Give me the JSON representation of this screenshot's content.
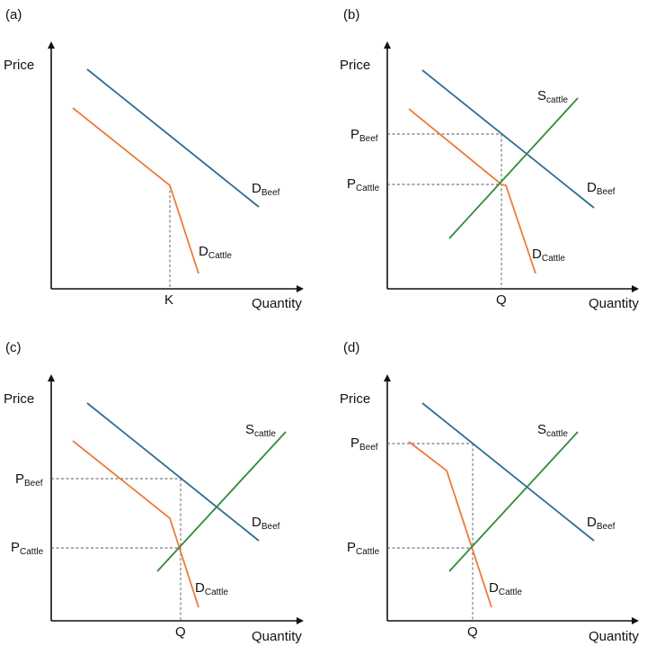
{
  "colors": {
    "demand_beef": "#2e6e93",
    "demand_cattle": "#ec7b3c",
    "supply_cattle": "#2f8a3a",
    "axis": "#111111",
    "guide": "#555555"
  },
  "panels": [
    {
      "tag": "(a)",
      "ylabel": "Price",
      "xlabel": "Quantity",
      "curves": {
        "demand_beef": {
          "label": "D",
          "sub": "Beef"
        },
        "demand_cattle": {
          "label": "D",
          "sub": "Cattle"
        }
      },
      "tick_x": "K"
    },
    {
      "tag": "(b)",
      "ylabel": "Price",
      "xlabel": "Quantity",
      "curves": {
        "demand_beef": {
          "label": "D",
          "sub": "Beef"
        },
        "demand_cattle": {
          "label": "D",
          "sub": "Cattle"
        },
        "supply_cattle": {
          "label": "S",
          "sub": "cattle"
        }
      },
      "tick_x": "Q",
      "price_beef": {
        "label": "P",
        "sub": "Beef"
      },
      "price_cattle": {
        "label": "P",
        "sub": "Cattle"
      }
    },
    {
      "tag": "(c)",
      "ylabel": "Price",
      "xlabel": "Quantity",
      "curves": {
        "demand_beef": {
          "label": "D",
          "sub": "Beef"
        },
        "demand_cattle": {
          "label": "D",
          "sub": "Cattle"
        },
        "supply_cattle": {
          "label": "S",
          "sub": "cattle"
        }
      },
      "tick_x": "Q",
      "price_beef": {
        "label": "P",
        "sub": "Beef"
      },
      "price_cattle": {
        "label": "P",
        "sub": "Cattle"
      }
    },
    {
      "tag": "(d)",
      "ylabel": "Price",
      "xlabel": "Quantity",
      "curves": {
        "demand_beef": {
          "label": "D",
          "sub": "Beef"
        },
        "demand_cattle": {
          "label": "D",
          "sub": "Cattle"
        },
        "supply_cattle": {
          "label": "S",
          "sub": "cattle"
        }
      },
      "tick_x": "Q",
      "price_beef": {
        "label": "P",
        "sub": "Beef"
      },
      "price_cattle": {
        "label": "P",
        "sub": "Cattle"
      }
    }
  ]
}
